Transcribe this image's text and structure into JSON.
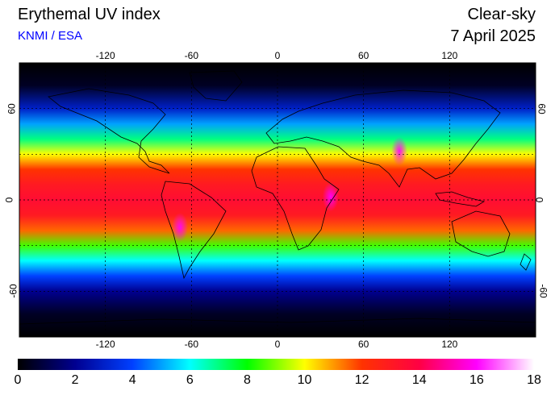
{
  "header": {
    "title": "Erythemal UV index",
    "source": "KNMI / ESA",
    "condition": "Clear-sky",
    "date": "7 April 2025"
  },
  "map": {
    "projection": "equirectangular",
    "lon_range": [
      -180,
      180
    ],
    "lat_range": [
      -90,
      90
    ],
    "grid": true,
    "grid_lons": [
      -120,
      -60,
      0,
      60,
      120
    ],
    "grid_lats": [
      60,
      30,
      0,
      -30,
      -60
    ],
    "lon_tick_labels": [
      "-120",
      "-60",
      "0",
      "60",
      "120"
    ],
    "lat_tick_labels": [
      "60",
      "0",
      "-60"
    ],
    "coastlines": true,
    "high_uv_regions": [
      "Andes",
      "East Africa highlands",
      "Tibetan Plateau"
    ]
  },
  "colorbar": {
    "min": 0,
    "max": 18,
    "tick_labels": [
      "0",
      "2",
      "4",
      "6",
      "8",
      "10",
      "12",
      "14",
      "16",
      "18"
    ],
    "colors": [
      "#000000",
      "#000090",
      "#0040ff",
      "#00ffff",
      "#00ff00",
      "#ffff00",
      "#ff3300",
      "#ff0044",
      "#ff00ff",
      "#ffffff"
    ]
  },
  "chart_data": {
    "type": "heatmap",
    "title": "Erythemal UV index",
    "x": "longitude",
    "y": "latitude",
    "uv_by_latitude": [
      {
        "lat": 75,
        "uv": 0.5
      },
      {
        "lat": 60,
        "uv": 3
      },
      {
        "lat": 50,
        "uv": 5
      },
      {
        "lat": 40,
        "uv": 7
      },
      {
        "lat": 30,
        "uv": 10
      },
      {
        "lat": 20,
        "uv": 12
      },
      {
        "lat": 10,
        "uv": 13
      },
      {
        "lat": 0,
        "uv": 13.5
      },
      {
        "lat": -10,
        "uv": 13
      },
      {
        "lat": -20,
        "uv": 11.5
      },
      {
        "lat": -30,
        "uv": 8.5
      },
      {
        "lat": -40,
        "uv": 6
      },
      {
        "lat": -50,
        "uv": 4
      },
      {
        "lat": -60,
        "uv": 2
      },
      {
        "lat": -75,
        "uv": 0.5
      }
    ],
    "hotspots": [
      {
        "name": "Andes",
        "lon": -68,
        "lat": -18,
        "uv": 16
      },
      {
        "name": "East Africa highlands",
        "lon": 37,
        "lat": 2,
        "uv": 15
      },
      {
        "name": "Tibetan Plateau",
        "lon": 85,
        "lat": 32,
        "uv": 14
      }
    ],
    "colorbar_range": [
      0,
      18
    ]
  }
}
